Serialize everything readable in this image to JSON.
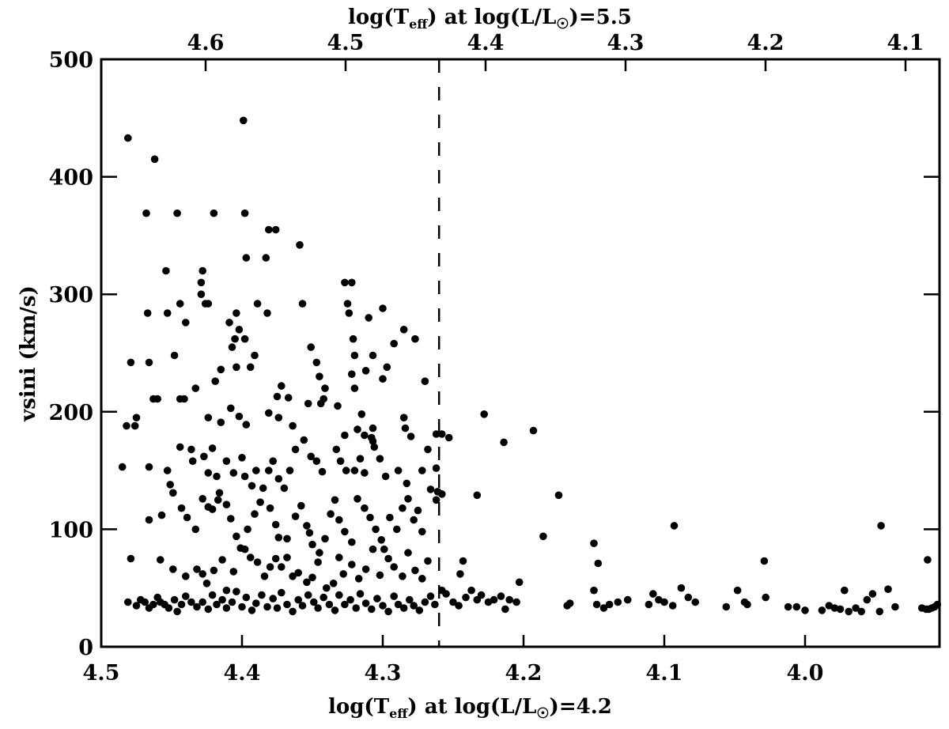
{
  "chart_data": {
    "type": "scatter",
    "title": "",
    "xlabel_bottom": "log(T_eff) at log(L/L☉)=4.2",
    "xlabel_top": "log(T_eff) at log(L/L☉)=5.5",
    "ylabel": "vsini (km/s)",
    "xlim_bottom": [
      4.5,
      3.904
    ],
    "xlim_top": [
      4.678,
      4.075
    ],
    "ylim": [
      0,
      500
    ],
    "grid": false,
    "legend": null,
    "bottom_ticks": [
      "4.5",
      "4.4",
      "4.3",
      "4.2",
      "4.1",
      "4.0"
    ],
    "top_ticks": [
      "4.6",
      "4.5",
      "4.4",
      "4.3",
      "4.2",
      "4.1"
    ],
    "y_ticks": [
      "0",
      "100",
      "200",
      "300",
      "400",
      "500"
    ],
    "vertical_dashed_line_x": 4.26,
    "marker": {
      "shape": "filled-circle",
      "color": "#000000"
    },
    "points": [
      [
        4.481,
        433
      ],
      [
        4.462,
        415
      ],
      [
        4.399,
        448
      ],
      [
        4.468,
        369
      ],
      [
        4.446,
        369
      ],
      [
        4.42,
        369
      ],
      [
        4.398,
        369
      ],
      [
        4.381,
        355
      ],
      [
        4.376,
        355
      ],
      [
        4.383,
        331
      ],
      [
        4.397,
        331
      ],
      [
        4.359,
        342
      ],
      [
        4.454,
        320
      ],
      [
        4.428,
        320
      ],
      [
        4.429,
        310
      ],
      [
        4.429,
        300
      ],
      [
        4.426,
        292
      ],
      [
        4.444,
        292
      ],
      [
        4.424,
        292
      ],
      [
        4.404,
        284
      ],
      [
        4.389,
        292
      ],
      [
        4.382,
        284
      ],
      [
        4.357,
        292
      ],
      [
        4.467,
        284
      ],
      [
        4.453,
        284
      ],
      [
        4.44,
        276
      ],
      [
        4.409,
        276
      ],
      [
        4.402,
        270
      ],
      [
        4.398,
        262
      ],
      [
        4.327,
        310
      ],
      [
        4.322,
        310
      ],
      [
        4.325,
        292
      ],
      [
        4.324,
        284
      ],
      [
        4.31,
        280
      ],
      [
        4.3,
        288
      ],
      [
        4.321,
        262
      ],
      [
        4.307,
        248
      ],
      [
        4.292,
        258
      ],
      [
        4.285,
        270
      ],
      [
        4.277,
        262
      ],
      [
        4.32,
        248
      ],
      [
        4.479,
        242
      ],
      [
        4.466,
        242
      ],
      [
        4.448,
        248
      ],
      [
        4.391,
        248
      ],
      [
        4.394,
        238
      ],
      [
        4.404,
        238
      ],
      [
        4.407,
        255
      ],
      [
        4.405,
        262
      ],
      [
        4.415,
        236
      ],
      [
        4.419,
        226
      ],
      [
        4.433,
        220
      ],
      [
        4.351,
        255
      ],
      [
        4.347,
        242
      ],
      [
        4.345,
        230
      ],
      [
        4.341,
        220
      ],
      [
        4.342,
        211
      ],
      [
        4.372,
        222
      ],
      [
        4.375,
        213
      ],
      [
        4.367,
        212
      ],
      [
        4.322,
        232
      ],
      [
        4.32,
        220
      ],
      [
        4.312,
        235
      ],
      [
        4.3,
        228
      ],
      [
        4.297,
        238
      ],
      [
        4.475,
        195
      ],
      [
        4.482,
        188
      ],
      [
        4.476,
        188
      ],
      [
        4.463,
        211
      ],
      [
        4.46,
        211
      ],
      [
        4.444,
        211
      ],
      [
        4.441,
        211
      ],
      [
        4.424,
        195
      ],
      [
        4.415,
        191
      ],
      [
        4.408,
        203
      ],
      [
        4.402,
        196
      ],
      [
        4.397,
        189
      ],
      [
        4.381,
        199
      ],
      [
        4.374,
        195
      ],
      [
        4.364,
        188
      ],
      [
        4.353,
        207
      ],
      [
        4.344,
        207
      ],
      [
        4.332,
        205
      ],
      [
        4.315,
        198
      ],
      [
        4.307,
        186
      ],
      [
        4.285,
        195
      ],
      [
        4.284,
        186
      ],
      [
        4.28,
        179
      ],
      [
        4.27,
        226
      ],
      [
        4.262,
        181
      ],
      [
        4.485,
        153
      ],
      [
        4.466,
        153
      ],
      [
        4.453,
        150
      ],
      [
        4.451,
        138
      ],
      [
        4.449,
        131
      ],
      [
        4.444,
        170
      ],
      [
        4.436,
        168
      ],
      [
        4.435,
        158
      ],
      [
        4.427,
        162
      ],
      [
        4.421,
        169
      ],
      [
        4.424,
        148
      ],
      [
        4.418,
        145
      ],
      [
        4.417,
        125
      ],
      [
        4.411,
        158
      ],
      [
        4.406,
        148
      ],
      [
        4.4,
        161
      ],
      [
        4.398,
        145
      ],
      [
        4.393,
        137
      ],
      [
        4.39,
        150
      ],
      [
        4.381,
        150
      ],
      [
        4.378,
        158
      ],
      [
        4.374,
        143
      ],
      [
        4.37,
        135
      ],
      [
        4.366,
        150
      ],
      [
        4.362,
        168
      ],
      [
        4.356,
        176
      ],
      [
        4.351,
        162
      ],
      [
        4.347,
        158
      ],
      [
        4.343,
        149
      ],
      [
        4.333,
        168
      ],
      [
        4.33,
        158
      ],
      [
        4.326,
        150
      ],
      [
        4.32,
        150
      ],
      [
        4.316,
        160
      ],
      [
        4.313,
        148
      ],
      [
        4.307,
        175
      ],
      [
        4.302,
        160
      ],
      [
        4.298,
        145
      ],
      [
        4.289,
        150
      ],
      [
        4.283,
        139
      ],
      [
        4.272,
        150
      ],
      [
        4.268,
        168
      ],
      [
        4.262,
        152
      ],
      [
        4.327,
        180
      ],
      [
        4.318,
        185
      ],
      [
        4.313,
        180
      ],
      [
        4.308,
        178
      ],
      [
        4.306,
        170
      ],
      [
        4.466,
        108
      ],
      [
        4.457,
        112
      ],
      [
        4.443,
        118
      ],
      [
        4.439,
        110
      ],
      [
        4.433,
        100
      ],
      [
        4.428,
        126
      ],
      [
        4.424,
        119
      ],
      [
        4.421,
        117
      ],
      [
        4.416,
        131
      ],
      [
        4.411,
        121
      ],
      [
        4.408,
        109
      ],
      [
        4.404,
        94
      ],
      [
        4.401,
        84
      ],
      [
        4.396,
        100
      ],
      [
        4.391,
        113
      ],
      [
        4.387,
        123
      ],
      [
        4.385,
        135
      ],
      [
        4.38,
        118
      ],
      [
        4.376,
        104
      ],
      [
        4.374,
        93
      ],
      [
        4.368,
        92
      ],
      [
        4.362,
        111
      ],
      [
        4.358,
        120
      ],
      [
        4.354,
        103
      ],
      [
        4.352,
        97
      ],
      [
        4.35,
        87
      ],
      [
        4.345,
        80
      ],
      [
        4.341,
        92
      ],
      [
        4.337,
        113
      ],
      [
        4.334,
        125
      ],
      [
        4.331,
        108
      ],
      [
        4.327,
        98
      ],
      [
        4.322,
        89
      ],
      [
        4.318,
        126
      ],
      [
        4.313,
        118
      ],
      [
        4.309,
        110
      ],
      [
        4.305,
        100
      ],
      [
        4.301,
        91
      ],
      [
        4.299,
        83
      ],
      [
        4.295,
        110
      ],
      [
        4.29,
        100
      ],
      [
        4.286,
        118
      ],
      [
        4.282,
        126
      ],
      [
        4.278,
        108
      ],
      [
        4.275,
        116
      ],
      [
        4.272,
        98
      ],
      [
        4.266,
        134
      ],
      [
        4.262,
        125
      ],
      [
        4.479,
        75
      ],
      [
        4.458,
        74
      ],
      [
        4.449,
        66
      ],
      [
        4.44,
        60
      ],
      [
        4.432,
        66
      ],
      [
        4.428,
        62
      ],
      [
        4.425,
        54
      ],
      [
        4.42,
        65
      ],
      [
        4.414,
        74
      ],
      [
        4.411,
        48
      ],
      [
        4.406,
        64
      ],
      [
        4.398,
        83
      ],
      [
        4.394,
        76
      ],
      [
        4.389,
        72
      ],
      [
        4.384,
        60
      ],
      [
        4.38,
        68
      ],
      [
        4.376,
        75
      ],
      [
        4.372,
        68
      ],
      [
        4.368,
        76
      ],
      [
        4.364,
        60
      ],
      [
        4.36,
        63
      ],
      [
        4.354,
        55
      ],
      [
        4.35,
        59
      ],
      [
        4.346,
        72
      ],
      [
        4.34,
        50
      ],
      [
        4.335,
        54
      ],
      [
        4.331,
        76
      ],
      [
        4.328,
        62
      ],
      [
        4.322,
        70
      ],
      [
        4.317,
        58
      ],
      [
        4.312,
        66
      ],
      [
        4.307,
        83
      ],
      [
        4.302,
        61
      ],
      [
        4.296,
        75
      ],
      [
        4.292,
        68
      ],
      [
        4.286,
        60
      ],
      [
        4.282,
        80
      ],
      [
        4.277,
        65
      ],
      [
        4.272,
        58
      ],
      [
        4.268,
        73
      ],
      [
        4.481,
        38
      ],
      [
        4.475,
        35
      ],
      [
        4.472,
        40
      ],
      [
        4.469,
        38
      ],
      [
        4.466,
        33
      ],
      [
        4.463,
        36
      ],
      [
        4.46,
        42
      ],
      [
        4.458,
        38
      ],
      [
        4.455,
        36
      ],
      [
        4.452,
        33
      ],
      [
        4.448,
        40
      ],
      [
        4.446,
        30
      ],
      [
        4.443,
        36
      ],
      [
        4.44,
        43
      ],
      [
        4.436,
        38
      ],
      [
        4.432,
        34
      ],
      [
        4.428,
        38
      ],
      [
        4.424,
        32
      ],
      [
        4.421,
        44
      ],
      [
        4.418,
        36
      ],
      [
        4.414,
        40
      ],
      [
        4.411,
        33
      ],
      [
        4.407,
        38
      ],
      [
        4.404,
        47
      ],
      [
        4.4,
        34
      ],
      [
        4.397,
        42
      ],
      [
        4.393,
        31
      ],
      [
        4.39,
        37
      ],
      [
        4.386,
        44
      ],
      [
        4.382,
        34
      ],
      [
        4.378,
        41
      ],
      [
        4.375,
        33
      ],
      [
        4.372,
        46
      ],
      [
        4.368,
        36
      ],
      [
        4.364,
        30
      ],
      [
        4.36,
        40
      ],
      [
        4.357,
        35
      ],
      [
        4.353,
        44
      ],
      [
        4.349,
        38
      ],
      [
        4.346,
        33
      ],
      [
        4.342,
        42
      ],
      [
        4.338,
        36
      ],
      [
        4.334,
        31
      ],
      [
        4.331,
        44
      ],
      [
        4.327,
        36
      ],
      [
        4.323,
        40
      ],
      [
        4.319,
        33
      ],
      [
        4.316,
        45
      ],
      [
        4.312,
        37
      ],
      [
        4.308,
        32
      ],
      [
        4.304,
        41
      ],
      [
        4.3,
        35
      ],
      [
        4.296,
        30
      ],
      [
        4.292,
        43
      ],
      [
        4.289,
        36
      ],
      [
        4.285,
        33
      ],
      [
        4.281,
        40
      ],
      [
        4.278,
        35
      ],
      [
        4.274,
        31
      ],
      [
        4.27,
        38
      ],
      [
        4.266,
        43
      ],
      [
        4.263,
        36
      ],
      [
        4.258,
        181
      ],
      [
        4.253,
        178
      ],
      [
        4.258,
        130
      ],
      [
        4.261,
        132
      ],
      [
        4.243,
        73
      ],
      [
        4.245,
        62
      ],
      [
        4.258,
        48
      ],
      [
        4.255,
        45
      ],
      [
        4.25,
        38
      ],
      [
        4.246,
        35
      ],
      [
        4.241,
        42
      ],
      [
        4.237,
        48
      ],
      [
        4.233,
        40
      ],
      [
        4.23,
        44
      ],
      [
        4.225,
        38
      ],
      [
        4.221,
        40
      ],
      [
        4.216,
        43
      ],
      [
        4.213,
        32
      ],
      [
        4.21,
        40
      ],
      [
        4.205,
        38
      ],
      [
        4.203,
        55
      ],
      [
        4.228,
        198
      ],
      [
        4.214,
        174
      ],
      [
        4.193,
        184
      ],
      [
        4.233,
        129
      ],
      [
        4.175,
        129
      ],
      [
        4.186,
        94
      ],
      [
        4.15,
        88
      ],
      [
        4.147,
        71
      ],
      [
        4.15,
        48
      ],
      [
        4.148,
        36
      ],
      [
        4.143,
        33
      ],
      [
        4.139,
        36
      ],
      [
        4.133,
        38
      ],
      [
        4.126,
        40
      ],
      [
        4.169,
        35
      ],
      [
        4.167,
        37
      ],
      [
        4.111,
        36
      ],
      [
        4.108,
        45
      ],
      [
        4.104,
        40
      ],
      [
        4.1,
        38
      ],
      [
        4.094,
        35
      ],
      [
        4.093,
        103
      ],
      [
        4.088,
        50
      ],
      [
        4.083,
        42
      ],
      [
        4.078,
        38
      ],
      [
        4.056,
        34
      ],
      [
        4.048,
        48
      ],
      [
        4.043,
        38
      ],
      [
        4.041,
        36
      ],
      [
        4.029,
        73
      ],
      [
        4.028,
        42
      ],
      [
        4.012,
        34
      ],
      [
        4.006,
        34
      ],
      [
        4.0,
        31
      ],
      [
        3.988,
        31
      ],
      [
        3.983,
        35
      ],
      [
        3.979,
        33
      ],
      [
        3.975,
        32
      ],
      [
        3.972,
        48
      ],
      [
        3.969,
        30
      ],
      [
        3.964,
        33
      ],
      [
        3.96,
        30
      ],
      [
        3.956,
        40
      ],
      [
        3.952,
        45
      ],
      [
        3.947,
        30
      ],
      [
        3.946,
        103
      ],
      [
        3.941,
        49
      ],
      [
        3.936,
        34
      ],
      [
        3.917,
        33
      ],
      [
        3.914,
        32
      ],
      [
        3.912,
        32
      ],
      [
        3.91,
        33
      ],
      [
        3.908,
        34
      ],
      [
        3.906,
        36
      ],
      [
        3.913,
        74
      ]
    ]
  }
}
